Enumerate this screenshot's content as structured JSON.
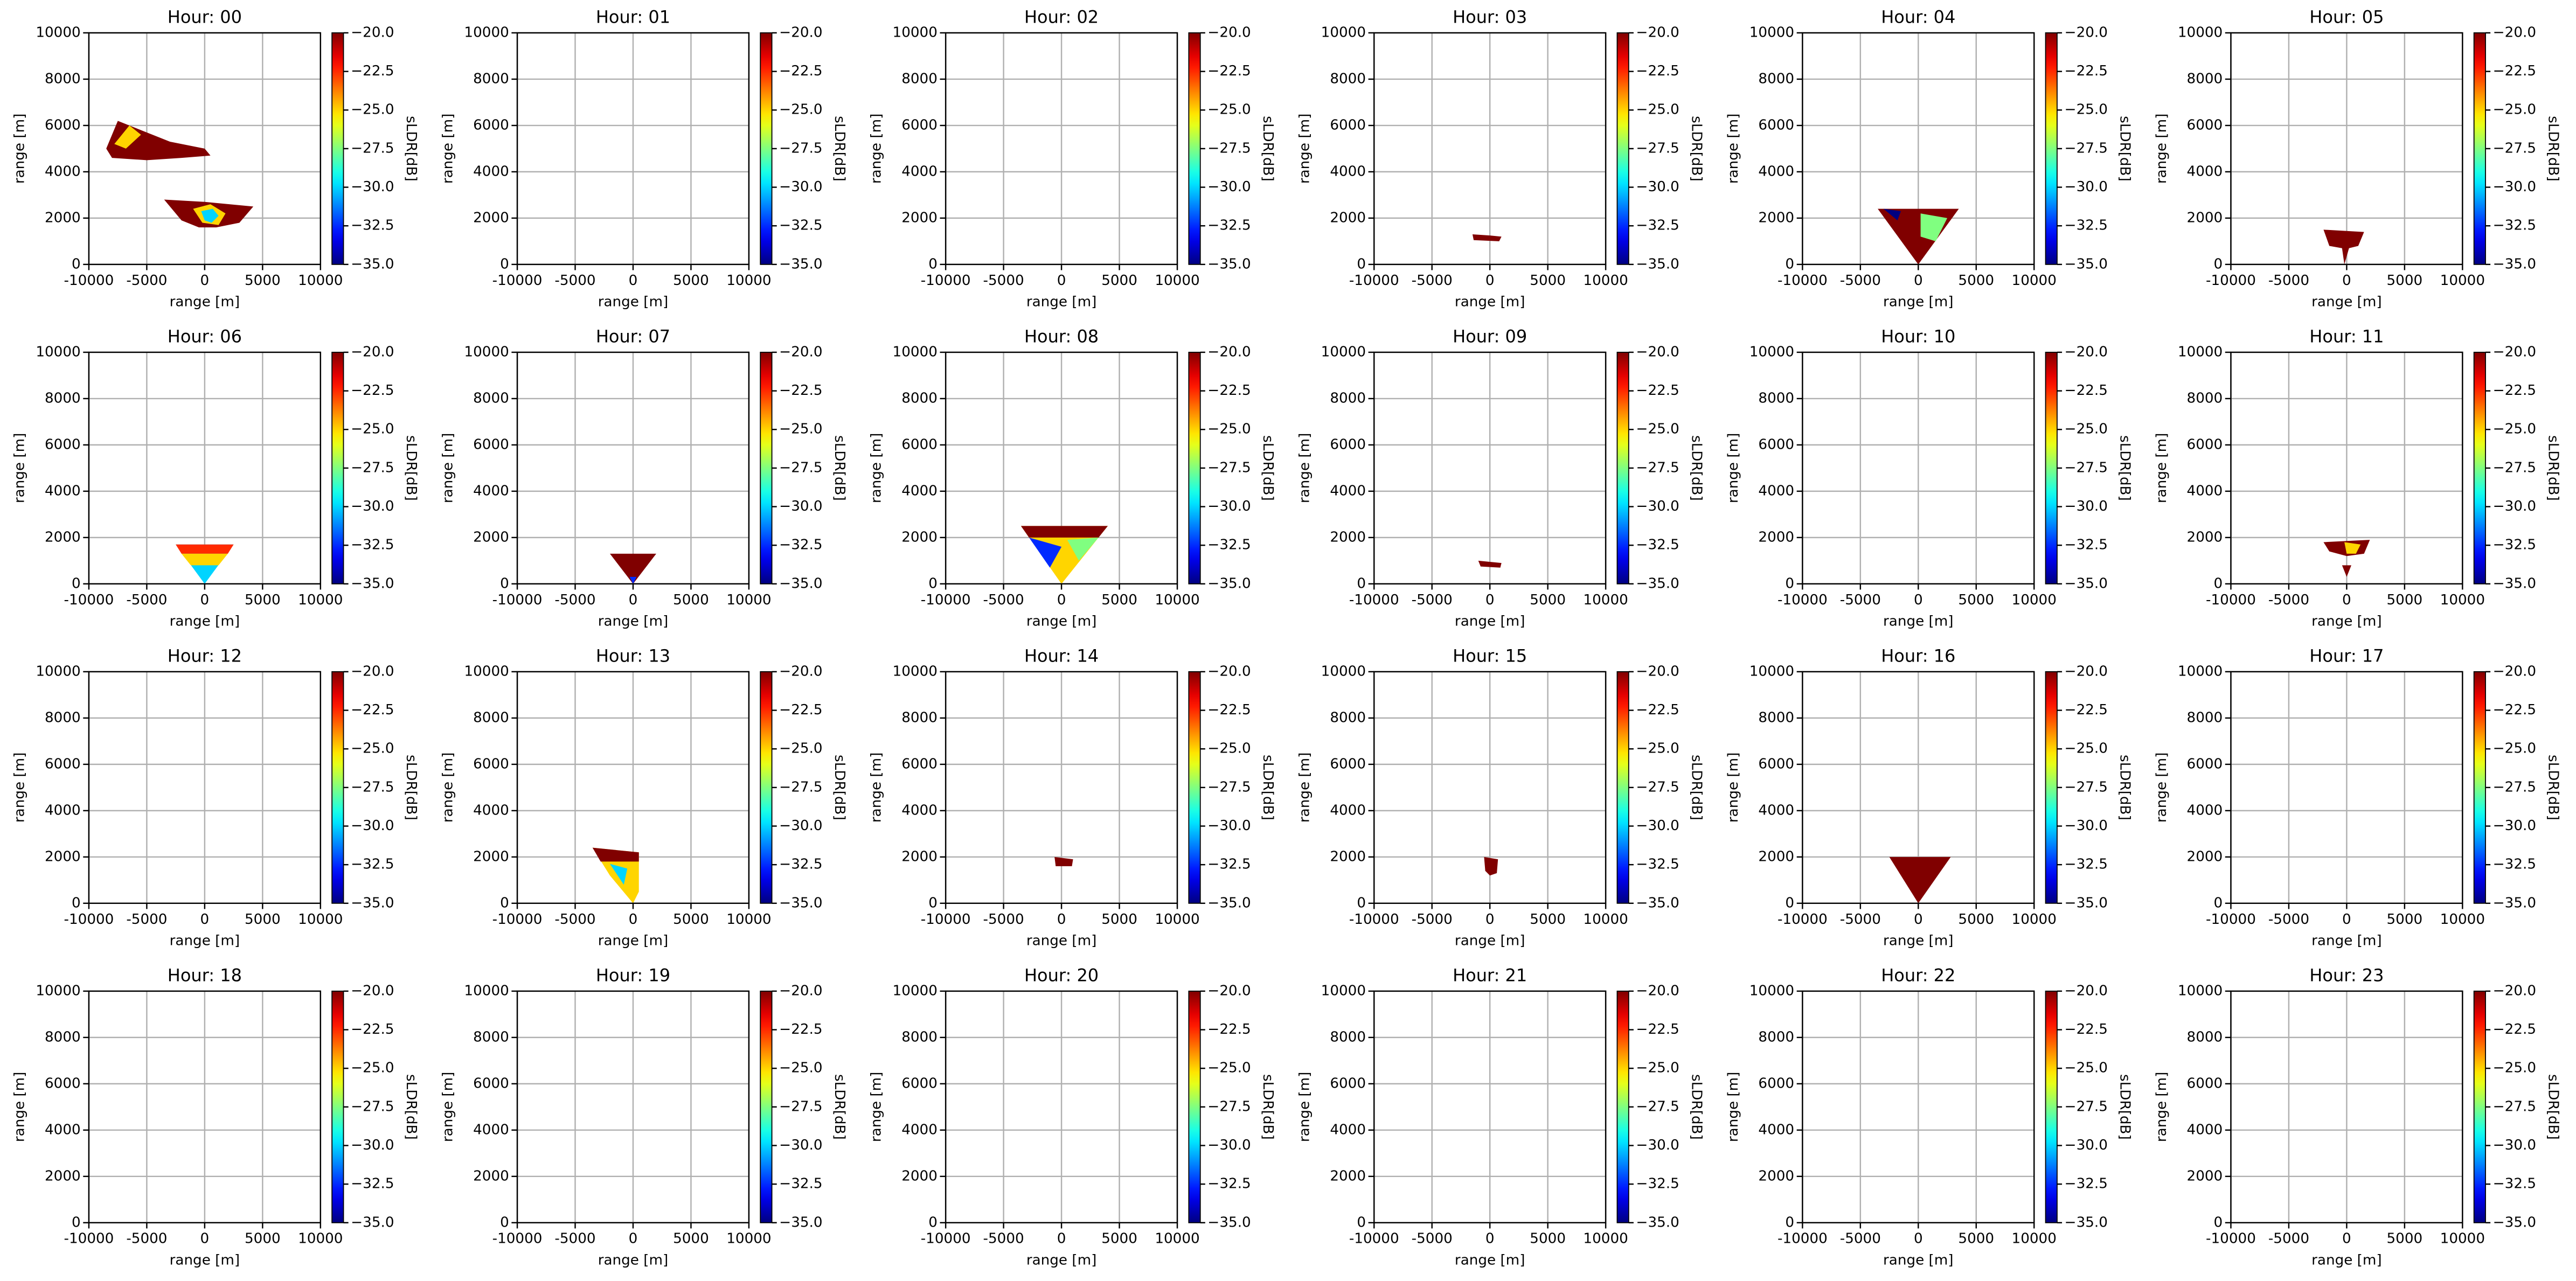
{
  "axes": {
    "xlabel": "range [m]",
    "ylabel": "range [m]",
    "colorbar_label": "sLDR[dB]",
    "xlim": [
      -10000,
      10000
    ],
    "xticks": [
      -10000,
      -5000,
      0,
      5000,
      10000
    ],
    "ylim": [
      0,
      10000
    ],
    "yticks": [
      0,
      2000,
      4000,
      6000,
      8000,
      10000
    ],
    "clim": [
      -35,
      -20
    ],
    "colormap": "jet",
    "grid": true,
    "cticks": [
      {
        "value": -35,
        "label": "−35.0"
      },
      {
        "value": -32.5,
        "label": "−32.5"
      },
      {
        "value": -30,
        "label": "−30.0"
      },
      {
        "value": -27.5,
        "label": "−27.5"
      },
      {
        "value": -25,
        "label": "−25.0"
      },
      {
        "value": -22.5,
        "label": "−22.5"
      },
      {
        "value": -20,
        "label": "−20.0"
      }
    ]
  },
  "chart_data": [
    {
      "type": "heatmap",
      "title": "Hour: 00",
      "regions": [
        {
          "x": [
            -8500,
            -7500,
            -5000,
            -3000,
            0,
            500,
            -2000,
            -5000,
            -8000
          ],
          "y": [
            5000,
            6200,
            5700,
            5300,
            5000,
            4700,
            4600,
            4500,
            4600
          ],
          "value": -20
        },
        {
          "x": [
            -7800,
            -6500,
            -5500,
            -6800
          ],
          "y": [
            5200,
            6000,
            5600,
            5000
          ],
          "value": -25
        },
        {
          "x": [
            -3500,
            0,
            4200,
            3000,
            1000,
            -500,
            -2000
          ],
          "y": [
            2800,
            2700,
            2500,
            1800,
            1600,
            1600,
            1900
          ],
          "value": -20
        },
        {
          "x": [
            -1000,
            500,
            1800,
            1200,
            -200
          ],
          "y": [
            2400,
            2600,
            2200,
            1700,
            1800
          ],
          "value": -25
        },
        {
          "x": [
            -300,
            700,
            1200,
            600,
            0
          ],
          "y": [
            2300,
            2400,
            2100,
            1800,
            1900
          ],
          "value": -30
        }
      ]
    },
    {
      "type": "heatmap",
      "title": "Hour: 01",
      "regions": []
    },
    {
      "type": "heatmap",
      "title": "Hour: 02",
      "regions": []
    },
    {
      "type": "heatmap",
      "title": "Hour: 03",
      "regions": [
        {
          "x": [
            -1500,
            0,
            1000,
            800,
            -1400
          ],
          "y": [
            1300,
            1250,
            1200,
            1000,
            1050
          ],
          "value": -20
        }
      ]
    },
    {
      "type": "heatmap",
      "title": "Hour: 04",
      "regions": [
        {
          "x": [
            -3500,
            3500,
            0
          ],
          "y": [
            2400,
            2400,
            0
          ],
          "value": -20
        },
        {
          "x": [
            200,
            2500,
            1500,
            200
          ],
          "y": [
            2200,
            2000,
            1000,
            1200
          ],
          "value": -27.5
        },
        {
          "x": [
            -3000,
            -1500,
            -1800
          ],
          "y": [
            2400,
            2300,
            1900
          ],
          "value": -35
        }
      ]
    },
    {
      "type": "heatmap",
      "title": "Hour: 05",
      "regions": [
        {
          "x": [
            -2000,
            1500,
            1000,
            200,
            -200,
            -400,
            -1500
          ],
          "y": [
            1500,
            1400,
            800,
            700,
            0,
            700,
            800
          ],
          "value": -20
        }
      ]
    },
    {
      "type": "heatmap",
      "title": "Hour: 06",
      "regions": [
        {
          "x": [
            -2500,
            2500,
            0
          ],
          "y": [
            1700,
            1700,
            0
          ],
          "value": -30
        },
        {
          "x": [
            -2500,
            2500,
            2000,
            -2000
          ],
          "y": [
            1700,
            1700,
            1300,
            1300
          ],
          "value": -22.5
        },
        {
          "x": [
            -2000,
            2000,
            1200,
            -1200
          ],
          "y": [
            1300,
            1300,
            800,
            800
          ],
          "value": -25
        }
      ]
    },
    {
      "type": "heatmap",
      "title": "Hour: 07",
      "regions": [
        {
          "x": [
            -2000,
            2000,
            0
          ],
          "y": [
            1300,
            1300,
            0
          ],
          "value": -20
        },
        {
          "x": [
            -300,
            300,
            0
          ],
          "y": [
            300,
            300,
            0
          ],
          "value": -32.5
        }
      ]
    },
    {
      "type": "heatmap",
      "title": "Hour: 08",
      "regions": [
        {
          "x": [
            -3500,
            4000,
            0
          ],
          "y": [
            2500,
            2500,
            0
          ],
          "value": -25
        },
        {
          "x": [
            -3500,
            4000,
            3200,
            -2800
          ],
          "y": [
            2500,
            2500,
            2000,
            2000
          ],
          "value": -20
        },
        {
          "x": [
            -2800,
            0,
            -1000
          ],
          "y": [
            2000,
            1600,
            700
          ],
          "value": -32.5
        },
        {
          "x": [
            500,
            3200,
            1500
          ],
          "y": [
            1900,
            2000,
            1000
          ],
          "value": -27.5
        }
      ]
    },
    {
      "type": "heatmap",
      "title": "Hour: 09",
      "regions": [
        {
          "x": [
            -1000,
            1000,
            900,
            -800
          ],
          "y": [
            1000,
            900,
            700,
            750
          ],
          "value": -20
        }
      ]
    },
    {
      "type": "heatmap",
      "title": "Hour: 10",
      "regions": []
    },
    {
      "type": "heatmap",
      "title": "Hour: 11",
      "regions": [
        {
          "x": [
            -2000,
            2000,
            1500,
            0,
            -1500
          ],
          "y": [
            1800,
            1900,
            1300,
            1200,
            1400
          ],
          "value": -20
        },
        {
          "x": [
            -200,
            1200,
            800,
            0
          ],
          "y": [
            1800,
            1700,
            1300,
            1300
          ],
          "value": -25
        },
        {
          "x": [
            -400,
            400,
            0
          ],
          "y": [
            800,
            800,
            300
          ],
          "value": -20
        }
      ]
    },
    {
      "type": "heatmap",
      "title": "Hour: 12",
      "regions": []
    },
    {
      "type": "heatmap",
      "title": "Hour: 13",
      "regions": [
        {
          "x": [
            -3500,
            500,
            500,
            0,
            -2000
          ],
          "y": [
            2400,
            2200,
            500,
            0,
            1200
          ],
          "value": -25
        },
        {
          "x": [
            -3500,
            500,
            500,
            -2800
          ],
          "y": [
            2400,
            2200,
            1800,
            1800
          ],
          "value": -20
        },
        {
          "x": [
            -2000,
            -500,
            -800
          ],
          "y": [
            1700,
            1500,
            800
          ],
          "value": -30
        }
      ]
    },
    {
      "type": "heatmap",
      "title": "Hour: 14",
      "regions": [
        {
          "x": [
            -600,
            1000,
            900,
            -500
          ],
          "y": [
            2000,
            1900,
            1600,
            1600
          ],
          "value": -20
        }
      ]
    },
    {
      "type": "heatmap",
      "title": "Hour: 15",
      "regions": [
        {
          "x": [
            -500,
            700,
            600,
            0,
            -400
          ],
          "y": [
            2000,
            1900,
            1300,
            1200,
            1400
          ],
          "value": -20
        }
      ]
    },
    {
      "type": "heatmap",
      "title": "Hour: 16",
      "regions": [
        {
          "x": [
            -2500,
            2800,
            0
          ],
          "y": [
            2000,
            2000,
            0
          ],
          "value": -20
        }
      ]
    },
    {
      "type": "heatmap",
      "title": "Hour: 17",
      "regions": []
    },
    {
      "type": "heatmap",
      "title": "Hour: 18",
      "regions": []
    },
    {
      "type": "heatmap",
      "title": "Hour: 19",
      "regions": []
    },
    {
      "type": "heatmap",
      "title": "Hour: 20",
      "regions": []
    },
    {
      "type": "heatmap",
      "title": "Hour: 21",
      "regions": []
    },
    {
      "type": "heatmap",
      "title": "Hour: 22",
      "regions": []
    },
    {
      "type": "heatmap",
      "title": "Hour: 23",
      "regions": []
    }
  ]
}
